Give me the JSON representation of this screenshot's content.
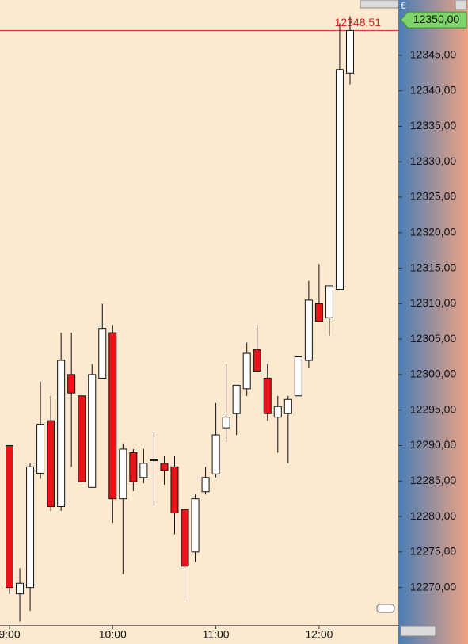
{
  "chart_data": {
    "type": "candlestick",
    "currency_symbol": "€",
    "categories": [
      "9:00",
      null,
      null,
      null,
      null,
      null,
      null,
      null,
      null,
      null,
      "10:00",
      null,
      null,
      null,
      null,
      null,
      null,
      null,
      null,
      null,
      "11:00",
      null,
      null,
      null,
      null,
      null,
      null,
      null,
      null,
      null,
      "12:00",
      null,
      null,
      null
    ],
    "open": [
      12290.0,
      12269.1,
      12270.0,
      12286.1,
      12293.5,
      12281.4,
      12300.0,
      12297.0,
      12284.1,
      12299.5,
      12305.9,
      12282.5,
      12289.0,
      12285.5,
      12288.0,
      12287.5,
      12287.0,
      12281.0,
      12275.0,
      12283.5,
      12286.0,
      12292.5,
      12294.5,
      12298.0,
      12303.5,
      12299.5,
      12294.0,
      12294.5,
      12297.0,
      12302.0,
      12310.0,
      12308.0,
      12312.0,
      12342.5
    ],
    "high": [
      12290.0,
      12272.7,
      12287.5,
      12299.0,
      12297.0,
      12305.9,
      12305.9,
      12297.0,
      12301.5,
      12310.0,
      12307.0,
      12290.3,
      12289.5,
      12289.5,
      12292.0,
      12288.5,
      12288.5,
      12281.0,
      12283.1,
      12287.0,
      12296.0,
      12301.5,
      12298.5,
      12304.5,
      12307.0,
      12301.5,
      12297.0,
      12297.0,
      12302.5,
      12313.2,
      12315.6,
      12312.5,
      12349.5,
      12350.5
    ],
    "low": [
      12269.1,
      12265.2,
      12266.7,
      12285.3,
      12280.8,
      12280.8,
      12287.0,
      12284.9,
      12284.1,
      12299.5,
      12279.1,
      12271.9,
      12283.6,
      12284.7,
      12281.4,
      12284.5,
      12277.5,
      12268.0,
      12273.6,
      12283.1,
      12285.5,
      12290.5,
      12291.5,
      12297.0,
      12300.5,
      12293.5,
      12289.0,
      12287.5,
      12297.0,
      12301.0,
      12307.5,
      12305.5,
      12312.0,
      12340.9
    ],
    "close": [
      12270.0,
      12270.6,
      12287.0,
      12293.0,
      12281.4,
      12302.0,
      12297.4,
      12284.9,
      12300.0,
      12306.5,
      12282.5,
      12289.5,
      12284.9,
      12287.5,
      12288.0,
      12286.5,
      12280.5,
      12273.0,
      12282.5,
      12285.5,
      12291.5,
      12294.0,
      12298.5,
      12303.0,
      12300.5,
      12294.5,
      12295.5,
      12296.5,
      12302.5,
      12310.5,
      12307.5,
      12312.5,
      12343.0,
      12348.51
    ],
    "up_color": "#ffffff",
    "down_color": "#e8141a",
    "ylim": [
      12264.6,
      12352.8
    ],
    "yticks": [
      {
        "value": 12345,
        "label": "12345,00"
      },
      {
        "value": 12340,
        "label": "12340,00"
      },
      {
        "value": 12335,
        "label": "12335,00"
      },
      {
        "value": 12330,
        "label": "12330,00"
      },
      {
        "value": 12325,
        "label": "12325,00"
      },
      {
        "value": 12320,
        "label": "12320,00"
      },
      {
        "value": 12315,
        "label": "12315,00"
      },
      {
        "value": 12310,
        "label": "12310,00"
      },
      {
        "value": 12305,
        "label": "12305,00"
      },
      {
        "value": 12300,
        "label": "12300,00"
      },
      {
        "value": 12295,
        "label": "12295,00"
      },
      {
        "value": 12290,
        "label": "12290,00"
      },
      {
        "value": 12285,
        "label": "12285,00"
      },
      {
        "value": 12280,
        "label": "12280,00"
      },
      {
        "value": 12275,
        "label": "12275,00"
      },
      {
        "value": 12270,
        "label": "12270,00"
      }
    ],
    "price_box": {
      "value": 12350,
      "label": "12350,00",
      "color": "#7ed36a"
    },
    "last_price": {
      "value": 12348.51,
      "label": "12348,51",
      "color": "#e02020"
    }
  }
}
